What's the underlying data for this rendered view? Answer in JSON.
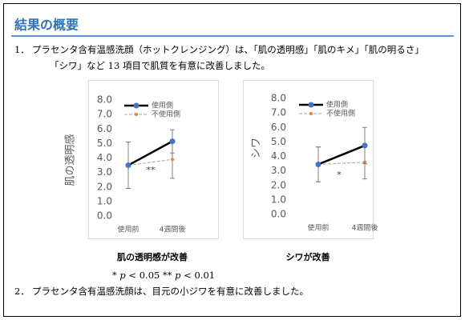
{
  "header": {
    "title": "結果の概要"
  },
  "paragraphs": [
    {
      "number": "1．",
      "lines": [
        "プラセンタ含有温感洗顔（ホットクレンジング）は、「肌の透明感」「肌のキメ」「肌の明るさ」",
        "「シワ」など 13 項目で肌質を有意に改善しました。"
      ]
    },
    {
      "number": "2．",
      "lines": [
        "プラセンタ含有温感洗顔は、目元の小ジワを有意に改善しました。"
      ]
    }
  ],
  "footnote": {
    "parts": [
      "* ",
      "p",
      " < 0.05 ** ",
      "p",
      " < 0.01"
    ]
  },
  "chart_data": [
    {
      "type": "line",
      "y_label": "肌の透明感",
      "caption": "肌の透明感が改善",
      "annotation": "**",
      "categories": [
        "使用前",
        "4週間後"
      ],
      "series": [
        {
          "name": "使用側",
          "color": "#4472c4",
          "line_color": "#000000",
          "dashed": false,
          "values": [
            3.5,
            5.15
          ],
          "errors": [
            1.6,
            0.8
          ]
        },
        {
          "name": "不使用側",
          "color": "#ed7d31",
          "line_color": "#a6a6a6",
          "dashed": true,
          "values": [
            3.5,
            3.9
          ],
          "errors": [
            1.6,
            1.3
          ]
        }
      ],
      "ylim": [
        0,
        8
      ],
      "yticks": [
        {
          "value": 0,
          "label": "0.0"
        },
        {
          "value": 1,
          "label": "1.0"
        },
        {
          "value": 2,
          "label": "2.0"
        },
        {
          "value": 3,
          "label": "3.0"
        },
        {
          "value": 4,
          "label": "4.0"
        },
        {
          "value": 5,
          "label": "5.0"
        },
        {
          "value": 6,
          "label": "6.0"
        },
        {
          "value": 7,
          "label": "7.0"
        },
        {
          "value": 8,
          "label": "8.0"
        }
      ],
      "grid": false
    },
    {
      "type": "line",
      "y_label": "シワ",
      "caption": "シワが改善",
      "annotation": "*",
      "categories": [
        "使用前",
        "4週間後"
      ],
      "series": [
        {
          "name": "使用側",
          "color": "#4472c4",
          "line_color": "#000000",
          "dashed": false,
          "values": [
            3.45,
            4.75
          ],
          "errors": [
            1.2,
            1.25
          ]
        },
        {
          "name": "不使用側",
          "color": "#ed7d31",
          "line_color": "#a6a6a6",
          "dashed": true,
          "values": [
            3.45,
            3.6
          ],
          "errors": [
            1.2,
            1.15
          ]
        }
      ],
      "ylim": [
        0,
        8
      ],
      "yticks": [
        {
          "value": 0,
          "label": "0.0"
        },
        {
          "value": 1,
          "label": "1.0"
        },
        {
          "value": 2,
          "label": "2.0"
        },
        {
          "value": 3,
          "label": "3.0"
        },
        {
          "value": 4,
          "label": "4.0"
        },
        {
          "value": 5,
          "label": "5.0"
        },
        {
          "value": 6,
          "label": "6.0"
        },
        {
          "value": 7,
          "label": "7.0"
        },
        {
          "value": 8,
          "label": "8.0"
        }
      ],
      "grid": false
    }
  ]
}
